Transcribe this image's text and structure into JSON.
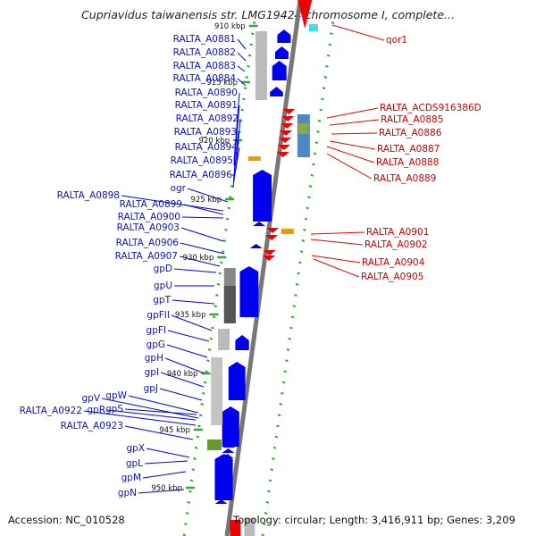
{
  "title": "Cupriavidus taiwanensis str. LMG19424 chromosome I, complete...",
  "footer": {
    "accession": "Accession: NC_010528",
    "summary": "Topology: circular; Length: 3,416,911 bp; Genes: 3,209"
  },
  "colors": {
    "forward": "#0000ee",
    "reverse": "#ee0000",
    "backbone": "#777777",
    "tick": "#33aa33"
  },
  "kbp_labels": [
    "910 kbp",
    "915 kbp",
    "920 kbp",
    "925 kbp",
    "930 kbp",
    "935 kbp",
    "940 kbp",
    "945 kbp",
    "950 kbp"
  ],
  "left_genes": [
    "RALTA_A0881",
    "RALTA_A0882",
    "RALTA_A0883",
    "RALTA_A0884",
    "RALTA_A0890",
    "RALTA_A0891",
    "RALTA_A0892",
    "RALTA_A0893",
    "RALTA_A0894",
    "RALTA_A0895",
    "RALTA_A0896",
    "ogr",
    "RALTA_A0898",
    "RALTA_A0899",
    "RALTA_A0900",
    "RALTA_A0903",
    "RALTA_A0906",
    "RALTA_A0907",
    "gpD",
    "gpU",
    "gpT",
    "gpFII",
    "gpFI",
    "gpG",
    "gpH",
    "gpI",
    "gpJ",
    "gpV",
    "gpW",
    "RALTA_A0922",
    "gpR",
    "gpS",
    "RALTA_A0923",
    "gpX",
    "gpL",
    "gpM",
    "gpN"
  ],
  "right_genes": [
    "qor1",
    "RALTA_ACDS916386D",
    "RALTA_A0885",
    "RALTA_A0886",
    "RALTA_A0887",
    "RALTA_A0888",
    "RALTA_A0889",
    "RALTA_A0901",
    "RALTA_A0902",
    "RALTA_A0904",
    "RALTA_A0905"
  ]
}
